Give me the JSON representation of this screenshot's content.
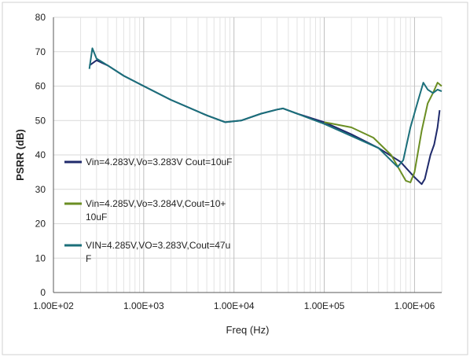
{
  "chart_data": {
    "type": "line",
    "title": "",
    "xlabel": "Freq (Hz)",
    "ylabel": "PSRR (dB)",
    "x_scale": "log",
    "xlim": [
      100,
      2000000
    ],
    "ylim": [
      0,
      80
    ],
    "grid": true,
    "legend_position": "left",
    "x_ticks": [
      100,
      1000,
      10000,
      100000,
      1000000
    ],
    "x_tick_labels": [
      "1.00E+02",
      "1.00E+03",
      "1.00E+04",
      "1.00E+05",
      "1.00E+06"
    ],
    "y_ticks": [
      0,
      10,
      20,
      30,
      40,
      50,
      60,
      70,
      80
    ],
    "y_tick_labels": [
      "0",
      "10",
      "20",
      "30",
      "40",
      "50",
      "60",
      "70",
      "80"
    ],
    "series": [
      {
        "name": "Vin=4.283V,Vo=3.283V Cout=10uF",
        "color": "#1f2a6b",
        "x": [
          250,
          300,
          400,
          600,
          1000,
          2000,
          5000,
          8000,
          12000,
          20000,
          30000,
          35000,
          50000,
          100000,
          200000,
          400000,
          700000,
          1000000,
          1200000,
          1300000,
          1500000,
          1650000,
          1800000,
          1900000
        ],
        "y": [
          66,
          67.5,
          66,
          63,
          60,
          56,
          51.5,
          49.5,
          50,
          52,
          53.2,
          53.5,
          52,
          49.5,
          46,
          42,
          38,
          33.5,
          31.5,
          33,
          40,
          43,
          48,
          53
        ]
      },
      {
        "name": "Vin=4.285V,Vo=3.284V,Cout=10+\n10uF",
        "color": "#6b8e23",
        "x": [
          100000,
          200000,
          350000,
          550000,
          800000,
          900000,
          1000000,
          1200000,
          1400000,
          1600000,
          1800000,
          2000000
        ],
        "y": [
          49.5,
          48,
          45,
          40,
          32.5,
          32,
          35,
          47,
          55,
          58,
          61,
          60
        ]
      },
      {
        "name": "VIN=4.285V,VO=3.283V,Cout=47u\nF",
        "color": "#1b6f7a",
        "x": [
          250,
          270,
          300,
          400,
          600,
          1000,
          2000,
          5000,
          8000,
          12000,
          20000,
          30000,
          35000,
          50000,
          100000,
          200000,
          400000,
          650000,
          750000,
          900000,
          1100000,
          1250000,
          1400000,
          1600000,
          1800000,
          2000000
        ],
        "y": [
          65,
          71,
          68,
          66,
          63,
          60,
          56,
          51.5,
          49.5,
          50,
          52,
          53.2,
          53.5,
          52,
          49,
          45.5,
          42,
          36.5,
          38.5,
          48,
          56,
          61,
          59,
          58,
          59,
          58.5
        ]
      }
    ]
  }
}
